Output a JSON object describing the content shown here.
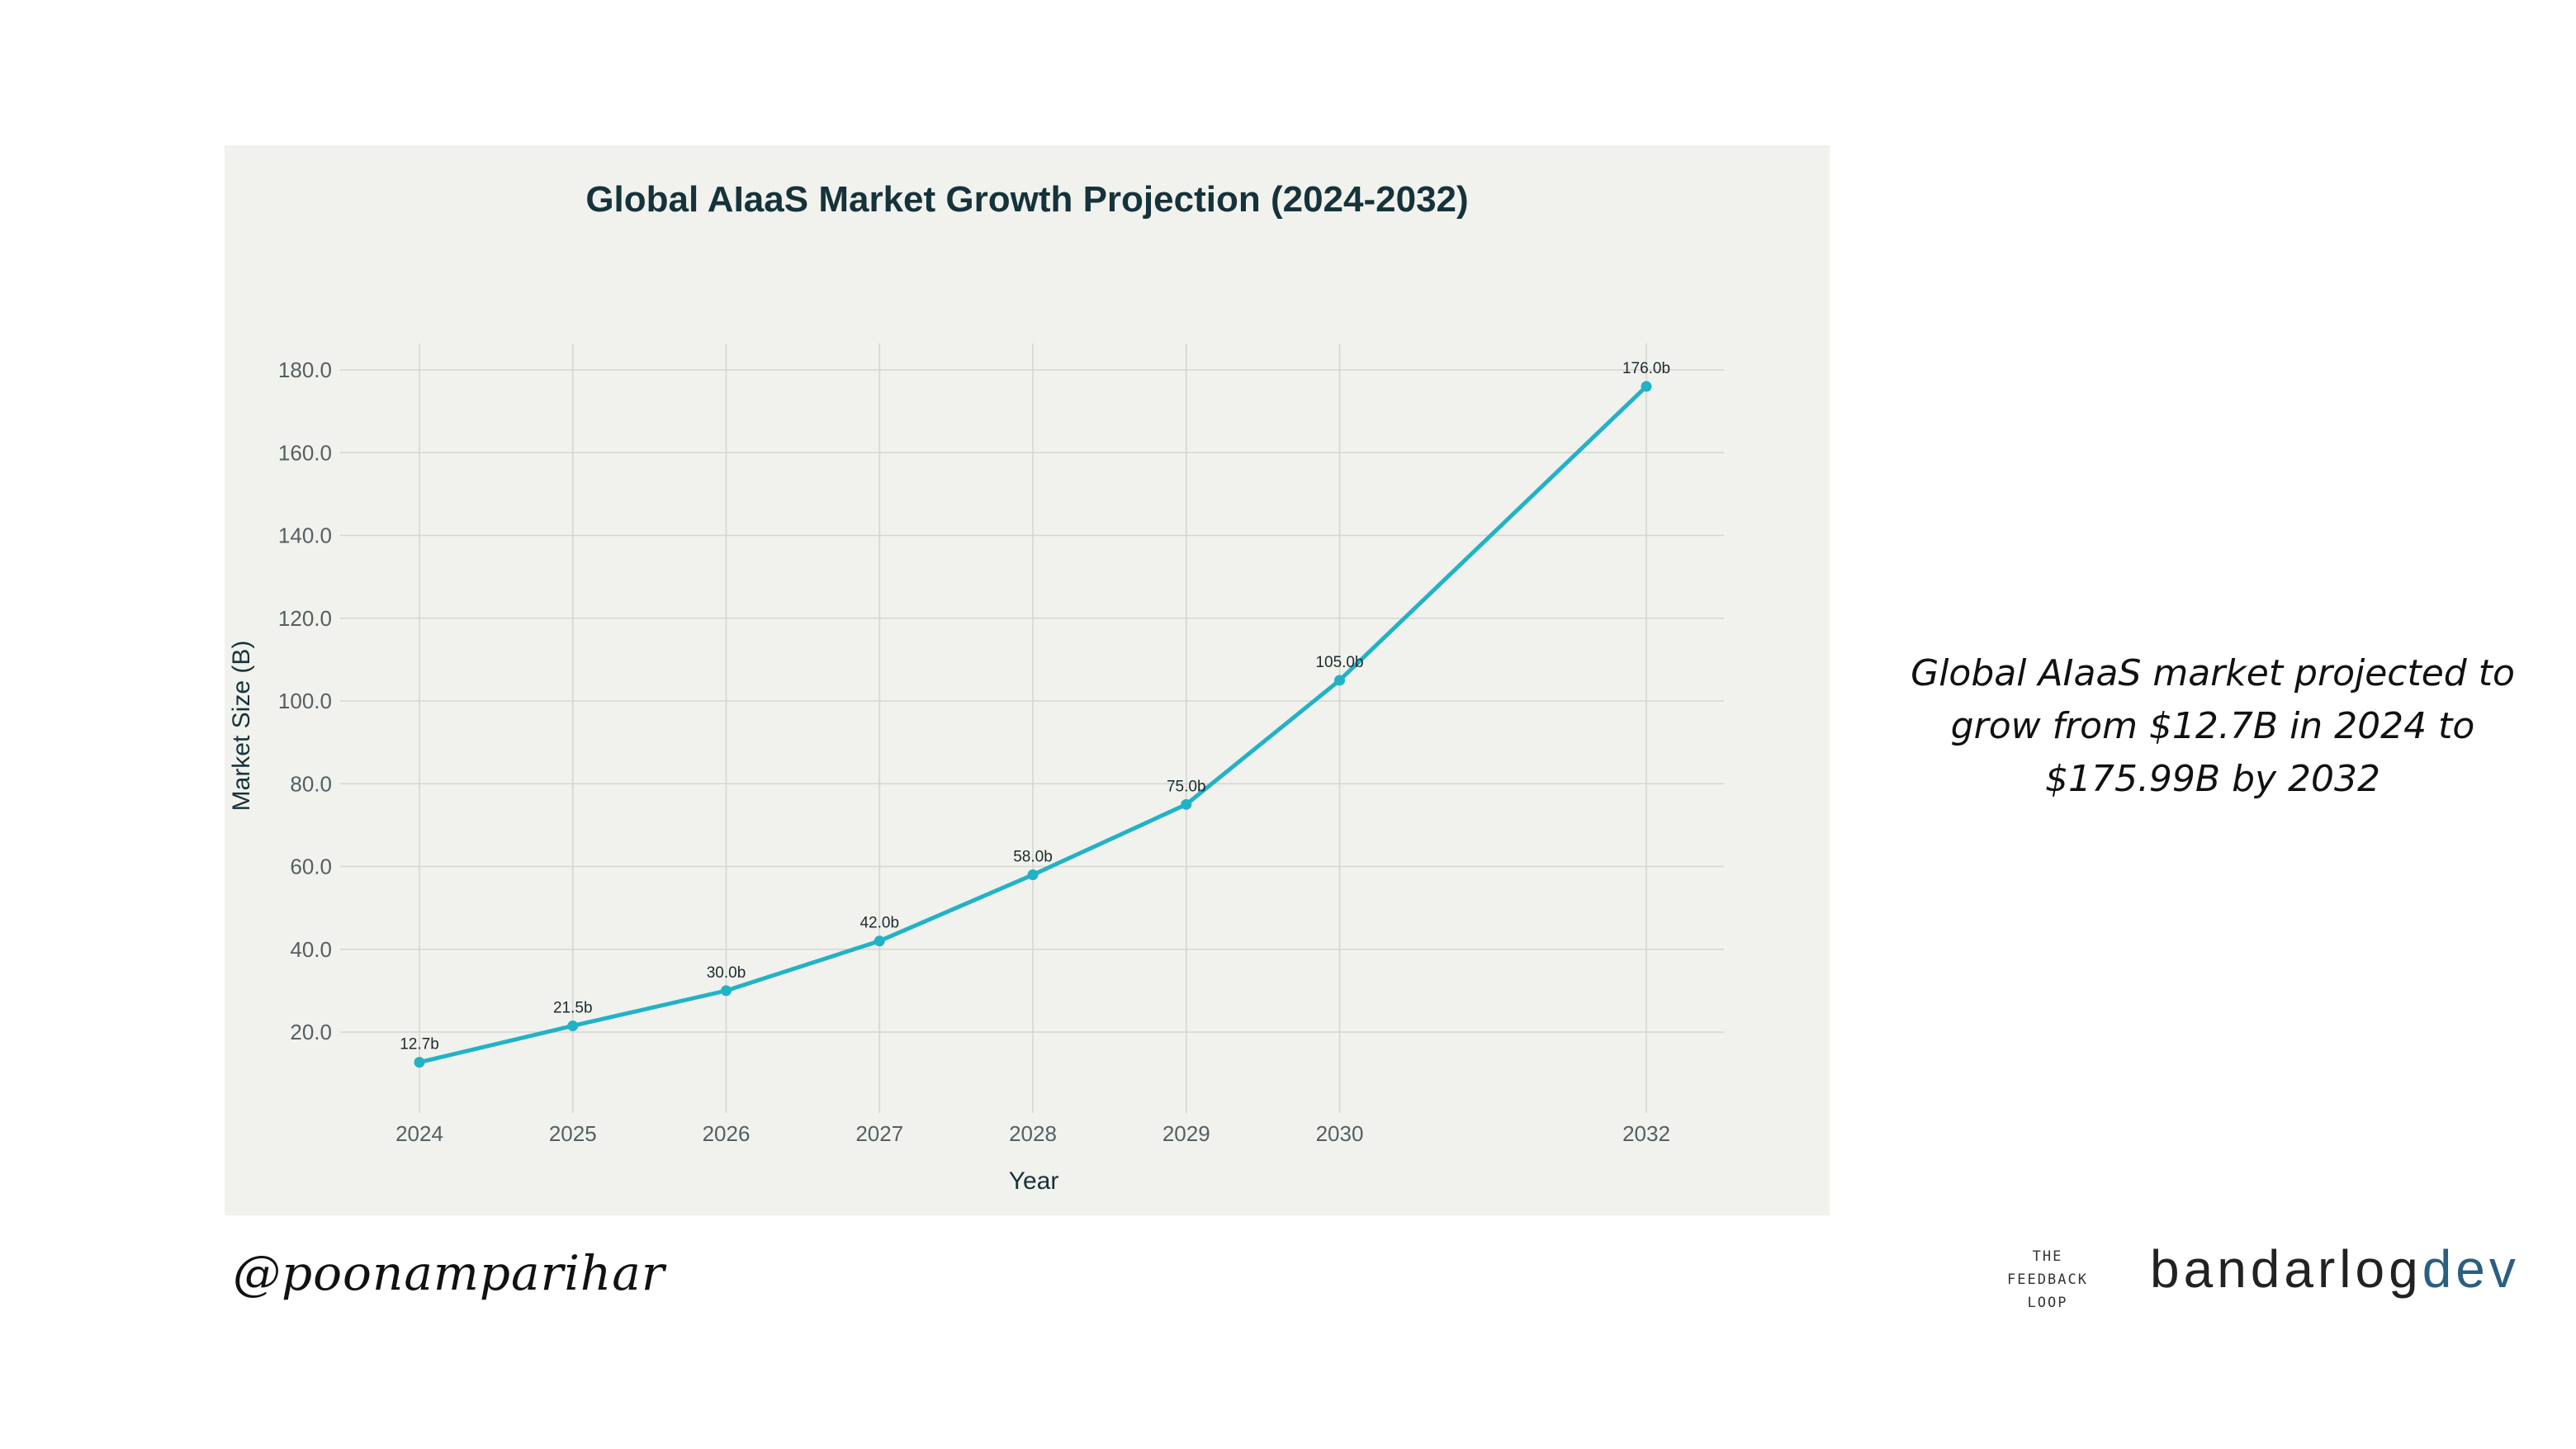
{
  "caption": "Global AIaaS market projected to grow from $12.7B in 2024 to $175.99B by 2032",
  "handle": "@poonamparihar",
  "logos": {
    "feedback_loop": [
      "THE",
      "FEEDBACK",
      "LOOP"
    ],
    "bandarlog_name": "bandarlog",
    "bandarlog_suffix": "dev"
  },
  "colors": {
    "line": "#22b2c6",
    "panel_bg": "#f1f2ed",
    "title": "#16323a"
  },
  "chart_data": {
    "type": "line",
    "title": "Global AIaaS Market Growth Projection (2024-2032)",
    "xlabel": "Year",
    "ylabel": "Market Size (B)",
    "x": [
      2024,
      2025,
      2026,
      2027,
      2028,
      2029,
      2030,
      2032
    ],
    "series": [
      {
        "values": [
          12.7,
          21.5,
          30.0,
          42.0,
          58.0,
          75.0,
          105.0,
          176.0
        ],
        "labels": [
          "12.7b",
          "21.5b",
          "30.0b",
          "42.0b",
          "58.0b",
          "75.0b",
          "105.0b",
          "176.0b"
        ]
      }
    ],
    "yticks": [
      20,
      40,
      60,
      80,
      100,
      120,
      140,
      160,
      180
    ],
    "ytick_labels": [
      "20.0",
      "40.0",
      "60.0",
      "80.0",
      "100.0",
      "120.0",
      "140.0",
      "160.0",
      "180.0"
    ],
    "xticks": [
      2024,
      2025,
      2026,
      2027,
      2028,
      2029,
      2030,
      2032
    ],
    "xtick_labels": [
      "2024",
      "2025",
      "2026",
      "2027",
      "2028",
      "2029",
      "2030",
      "2032"
    ],
    "xlim": [
      2024,
      2032
    ],
    "ylim": [
      0,
      180
    ],
    "grid": true,
    "legend": "none"
  }
}
